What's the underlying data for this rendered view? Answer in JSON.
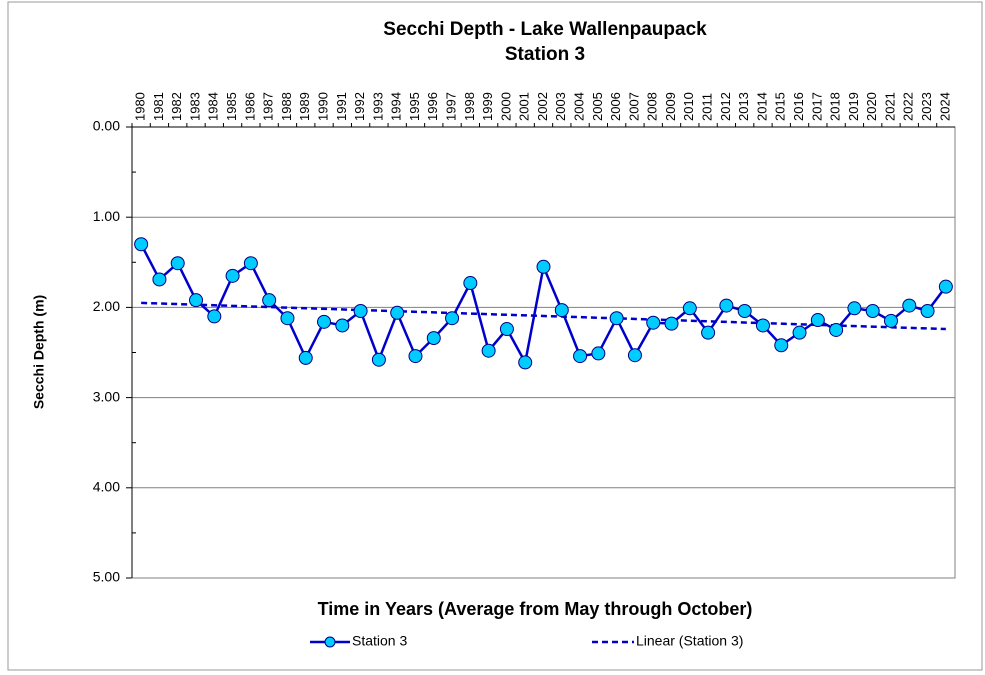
{
  "chart_data": {
    "type": "line",
    "title": [
      "Secchi Depth - Lake Wallenpaupack",
      "Station 3"
    ],
    "y_label": "Secchi Depth (m)",
    "x_label": "Time in Years (Average from May through October)",
    "categories": [
      "1980",
      "1981",
      "1982",
      "1983",
      "1984",
      "1985",
      "1986",
      "1987",
      "1988",
      "1989",
      "1990",
      "1991",
      "1992",
      "1993",
      "1994",
      "1995",
      "1996",
      "1997",
      "1998",
      "1999",
      "2000",
      "2001",
      "2002",
      "2003",
      "2004",
      "2005",
      "2006",
      "2007",
      "2008",
      "2009",
      "2010",
      "2011",
      "2012",
      "2013",
      "2014",
      "2015",
      "2016",
      "2017",
      "2018",
      "2019",
      "2020",
      "2021",
      "2022",
      "2023",
      "2024"
    ],
    "series": [
      {
        "name": "Station 3",
        "color": "#0000cc",
        "marker_color": "#00ccff",
        "values": [
          1.3,
          1.69,
          1.51,
          1.92,
          2.1,
          1.65,
          1.51,
          1.92,
          2.12,
          2.56,
          2.16,
          2.2,
          2.04,
          2.58,
          2.06,
          2.54,
          2.34,
          2.12,
          1.73,
          2.48,
          2.24,
          2.61,
          1.55,
          2.03,
          2.54,
          2.51,
          2.12,
          2.53,
          2.17,
          2.18,
          2.01,
          2.28,
          1.98,
          2.04,
          2.2,
          2.42,
          2.28,
          2.14,
          2.25,
          2.01,
          2.04,
          2.15,
          1.98,
          2.04,
          1.77
        ]
      }
    ],
    "trendline": {
      "name": "Linear (Station 3)",
      "color": "#0000cc",
      "values": [
        1.95,
        2.24
      ]
    },
    "ylim": [
      0,
      5
    ],
    "y_inverted": true,
    "yticks": [
      {
        "value": 0,
        "label": "0.00"
      },
      {
        "value": 1,
        "label": "1.00"
      },
      {
        "value": 2,
        "label": "2.00"
      },
      {
        "value": 3,
        "label": "3.00"
      },
      {
        "value": 4,
        "label": "4.00"
      },
      {
        "value": 5,
        "label": "5.00"
      }
    ],
    "minor_yticks": [
      0.5,
      1.5,
      2.5,
      3.5,
      4.5
    ],
    "grid": true,
    "legend": "bottom"
  }
}
